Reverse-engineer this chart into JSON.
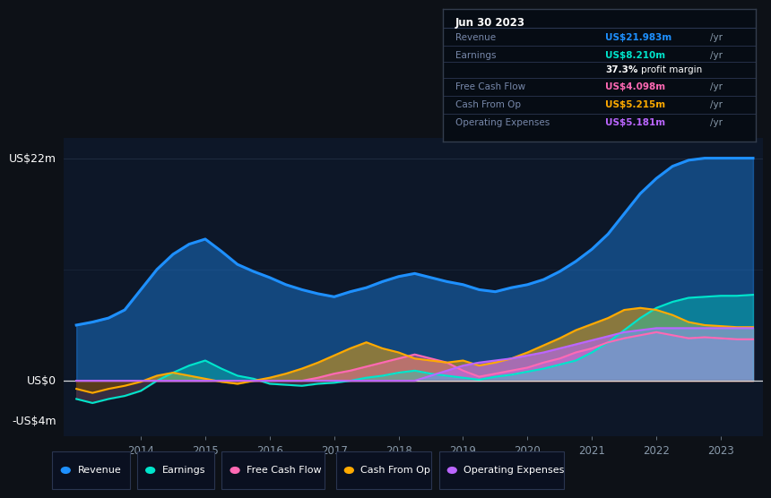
{
  "bg_color": "#0d1117",
  "plot_bg_color": "#0d1728",
  "title_date": "Jun 30 2023",
  "ylabel_top": "US$22m",
  "ylabel_zero": "US$0",
  "ylabel_neg": "-US$4m",
  "x_years": [
    2013.0,
    2013.25,
    2013.5,
    2013.75,
    2014.0,
    2014.25,
    2014.5,
    2014.75,
    2015.0,
    2015.25,
    2015.5,
    2015.75,
    2016.0,
    2016.25,
    2016.5,
    2016.75,
    2017.0,
    2017.25,
    2017.5,
    2017.75,
    2018.0,
    2018.25,
    2018.5,
    2018.75,
    2019.0,
    2019.25,
    2019.5,
    2019.75,
    2020.0,
    2020.25,
    2020.5,
    2020.75,
    2021.0,
    2021.25,
    2021.5,
    2021.75,
    2022.0,
    2022.25,
    2022.5,
    2022.75,
    2023.0,
    2023.25,
    2023.5
  ],
  "revenue": [
    5.5,
    5.8,
    6.2,
    7.0,
    9.0,
    11.0,
    12.5,
    13.5,
    14.0,
    12.8,
    11.5,
    10.8,
    10.2,
    9.5,
    9.0,
    8.6,
    8.3,
    8.8,
    9.2,
    9.8,
    10.3,
    10.6,
    10.2,
    9.8,
    9.5,
    9.0,
    8.8,
    9.2,
    9.5,
    10.0,
    10.8,
    11.8,
    13.0,
    14.5,
    16.5,
    18.5,
    20.0,
    21.2,
    21.8,
    22.0,
    22.0,
    22.0,
    22.0
  ],
  "earnings": [
    -1.8,
    -2.2,
    -1.8,
    -1.5,
    -1.0,
    0.0,
    0.8,
    1.5,
    2.0,
    1.2,
    0.5,
    0.2,
    -0.3,
    -0.4,
    -0.5,
    -0.3,
    -0.2,
    0.0,
    0.3,
    0.5,
    0.8,
    1.0,
    0.7,
    0.5,
    0.3,
    0.1,
    0.4,
    0.6,
    0.9,
    1.2,
    1.6,
    2.0,
    2.8,
    3.8,
    5.0,
    6.2,
    7.2,
    7.8,
    8.2,
    8.3,
    8.4,
    8.4,
    8.5
  ],
  "fcf": [
    0.0,
    0.0,
    0.0,
    0.0,
    0.0,
    0.0,
    0.0,
    0.0,
    0.0,
    0.0,
    0.0,
    0.0,
    0.0,
    0.0,
    0.0,
    0.3,
    0.7,
    1.0,
    1.4,
    1.8,
    2.2,
    2.6,
    2.2,
    1.8,
    1.0,
    0.4,
    0.7,
    1.0,
    1.3,
    1.8,
    2.2,
    2.8,
    3.2,
    3.8,
    4.2,
    4.5,
    4.8,
    4.5,
    4.2,
    4.3,
    4.2,
    4.1,
    4.1
  ],
  "cashop": [
    -0.8,
    -1.2,
    -0.8,
    -0.5,
    -0.1,
    0.5,
    0.8,
    0.5,
    0.2,
    -0.1,
    -0.3,
    0.0,
    0.3,
    0.7,
    1.2,
    1.8,
    2.5,
    3.2,
    3.8,
    3.2,
    2.8,
    2.2,
    2.0,
    1.8,
    2.0,
    1.5,
    1.8,
    2.2,
    2.8,
    3.5,
    4.2,
    5.0,
    5.6,
    6.2,
    7.0,
    7.2,
    7.0,
    6.5,
    5.8,
    5.5,
    5.4,
    5.3,
    5.3
  ],
  "opex": [
    0.0,
    0.0,
    0.0,
    0.0,
    0.0,
    0.0,
    0.0,
    0.0,
    0.0,
    0.0,
    0.0,
    0.0,
    0.0,
    0.0,
    0.0,
    0.0,
    0.0,
    0.0,
    0.0,
    0.0,
    0.0,
    0.0,
    0.5,
    1.0,
    1.5,
    1.8,
    2.0,
    2.2,
    2.5,
    2.8,
    3.2,
    3.6,
    4.0,
    4.4,
    4.8,
    5.0,
    5.2,
    5.2,
    5.2,
    5.2,
    5.2,
    5.2,
    5.2
  ],
  "revenue_color": "#1e90ff",
  "earnings_color": "#00e5cc",
  "fcf_color": "#ff69b4",
  "cashop_color": "#ffaa00",
  "opex_color": "#bb66ff",
  "info_revenue_color": "#1e90ff",
  "info_earnings_color": "#00e5cc",
  "info_fcf_color": "#ff69b4",
  "info_cashop_color": "#ffaa00",
  "info_opex_color": "#bb66ff",
  "legend": [
    {
      "label": "Revenue",
      "color": "#1e90ff"
    },
    {
      "label": "Earnings",
      "color": "#00e5cc"
    },
    {
      "label": "Free Cash Flow",
      "color": "#ff69b4"
    },
    {
      "label": "Cash From Op",
      "color": "#ffaa00"
    },
    {
      "label": "Operating Expenses",
      "color": "#bb66ff"
    }
  ],
  "xtick_years": [
    2014,
    2015,
    2016,
    2017,
    2018,
    2019,
    2020,
    2021,
    2022,
    2023
  ]
}
